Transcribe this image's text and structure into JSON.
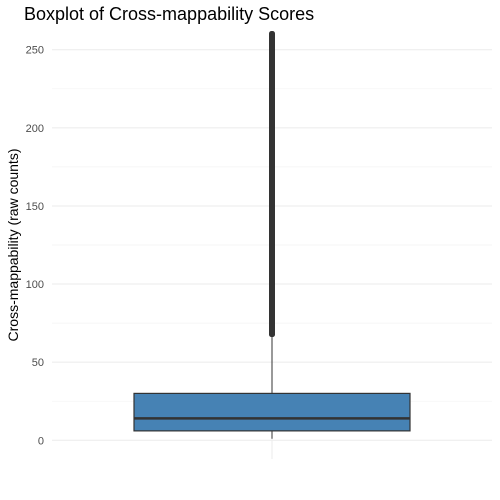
{
  "chart_data": {
    "type": "boxplot",
    "title": "Boxplot of Cross-mappability Scores",
    "xlabel": "",
    "ylabel": "Cross-mappability (raw counts)",
    "ylim": [
      -12,
      262
    ],
    "y_ticks": [
      0,
      50,
      100,
      150,
      200,
      250
    ],
    "y_tick_labels": [
      "0",
      "50",
      "100",
      "150",
      "200",
      "250"
    ],
    "grid": true,
    "legend": "none",
    "series": [
      {
        "min": 1,
        "q1": 6,
        "median": 14,
        "q3": 30,
        "whisker_high": 66,
        "outliers_range": [
          66,
          262
        ],
        "fill": "#4682b4",
        "line_color": "#333333"
      }
    ]
  }
}
